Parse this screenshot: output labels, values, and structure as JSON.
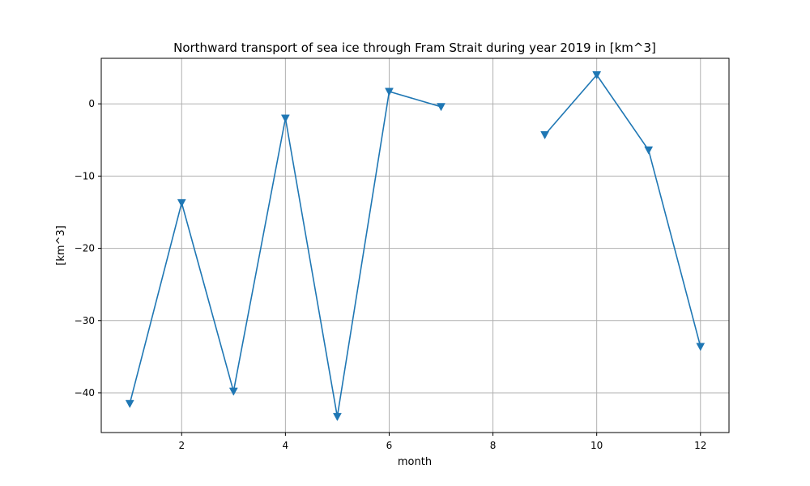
{
  "chart_data": {
    "type": "line",
    "title": "Northward transport of sea ice through Fram Strait during year 2019 in [km^3]",
    "xlabel": "month",
    "ylabel": "[km^3]",
    "xlim": [
      0.45,
      12.55
    ],
    "ylim": [
      -45.5,
      6.3
    ],
    "xticks": [
      2,
      4,
      6,
      8,
      10,
      12
    ],
    "yticks": [
      -40,
      -30,
      -20,
      -10,
      0
    ],
    "ytick_labels": [
      "−40",
      "−30",
      "−20",
      "−10",
      "0"
    ],
    "grid": true,
    "marker": "triangle-down",
    "color": "#1f77b4",
    "series": [
      {
        "x": [
          1,
          2,
          3,
          4,
          5,
          6,
          7,
          8,
          9,
          10,
          11,
          12
        ],
        "values": [
          -41.5,
          -13.7,
          -39.8,
          -2.0,
          -43.3,
          1.7,
          -0.4,
          null,
          -4.3,
          4.0,
          -6.4,
          -33.6
        ]
      }
    ]
  }
}
